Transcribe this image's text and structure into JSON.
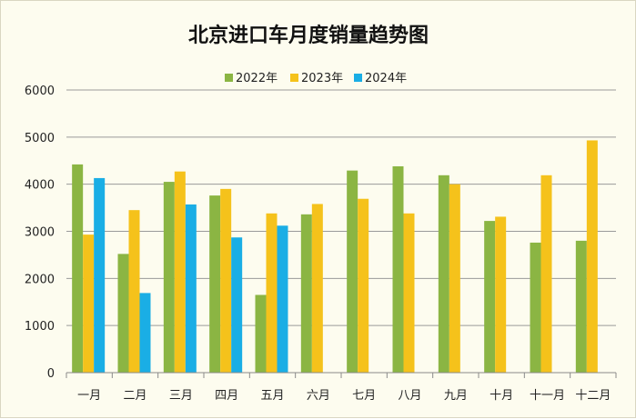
{
  "chart_data": {
    "type": "bar",
    "title": "北京进口车月度销量趋势图",
    "xlabel": "",
    "ylabel": "",
    "ylim": [
      0,
      6000
    ],
    "yticks": [
      0,
      1000,
      2000,
      3000,
      4000,
      5000,
      6000
    ],
    "grid": true,
    "legend_position": "top",
    "categories": [
      "一月",
      "二月",
      "三月",
      "四月",
      "五月",
      "六月",
      "七月",
      "八月",
      "九月",
      "十月",
      "十一月",
      "十二月"
    ],
    "series": [
      {
        "name": "2022年",
        "color": "#8bb543",
        "values": [
          4420,
          2520,
          4050,
          3760,
          1650,
          3360,
          4290,
          4380,
          4190,
          3220,
          2760,
          2800
        ]
      },
      {
        "name": "2023年",
        "color": "#f5c21b",
        "values": [
          2930,
          3450,
          4270,
          3900,
          3380,
          3580,
          3690,
          3380,
          4000,
          3310,
          4190,
          4930
        ]
      },
      {
        "name": "2024年",
        "color": "#1aaee5",
        "values": [
          4130,
          1690,
          3570,
          2870,
          3120,
          null,
          null,
          null,
          null,
          null,
          null,
          null
        ]
      }
    ]
  }
}
